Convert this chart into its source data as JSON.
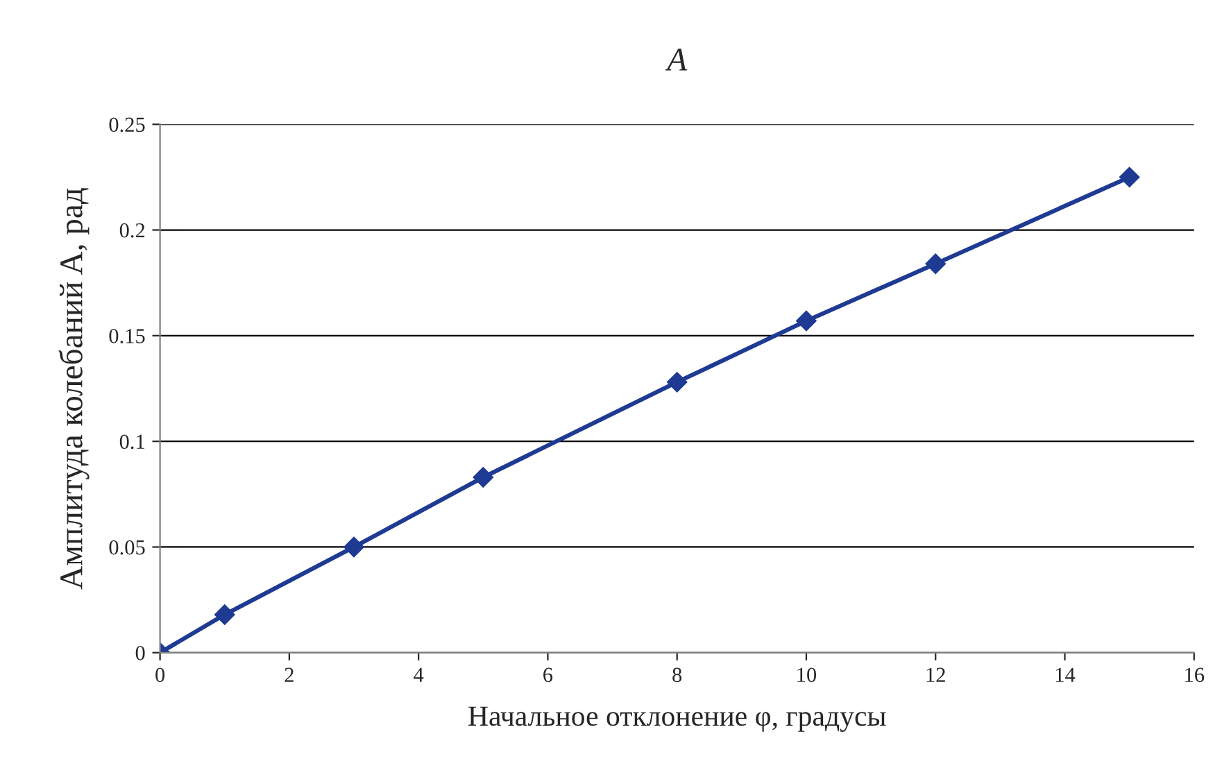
{
  "chart_data": {
    "type": "line",
    "title": "A",
    "xlabel": "Начальное отклонение φ, градусы",
    "ylabel": "Амплитуда колебаний A, рад",
    "x": [
      0,
      1,
      3,
      5,
      8,
      10,
      12,
      15
    ],
    "series": [
      {
        "color": "#1f3a93",
        "values": [
          0,
          0.018,
          0.05,
          0.083,
          0.128,
          0.157,
          0.184,
          0.225
        ]
      }
    ],
    "xlim": [
      0,
      16
    ],
    "xticks": [
      0,
      2,
      4,
      6,
      8,
      10,
      12,
      14,
      16
    ],
    "ylim": [
      0,
      0.25
    ],
    "yticks": [
      0,
      0.05,
      0.1,
      0.15,
      0.2,
      0.25
    ],
    "grid": "y",
    "marker": "diamond",
    "line_style": "solid"
  }
}
